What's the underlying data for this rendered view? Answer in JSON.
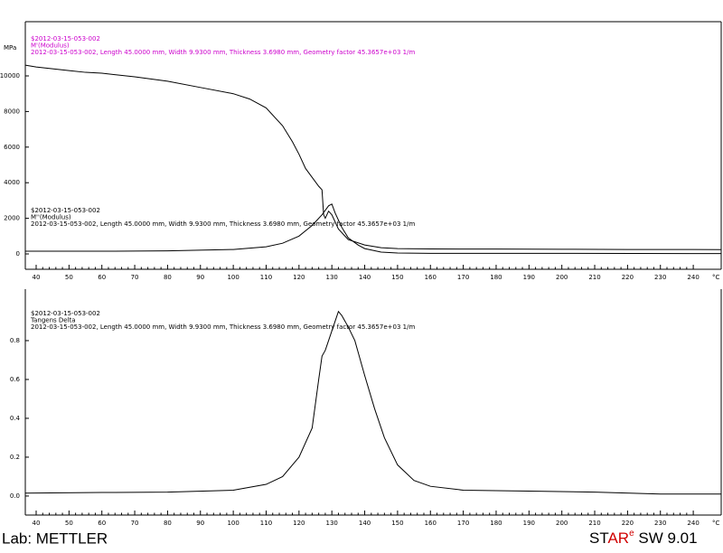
{
  "chart_data": [
    {
      "type": "line",
      "y_unit": "MPa",
      "x_unit": "°C",
      "xlim": [
        36.7,
        248.5
      ],
      "ylim": [
        -863,
        13046
      ],
      "xticks": [
        40,
        50,
        60,
        70,
        80,
        90,
        100,
        110,
        120,
        130,
        140,
        150,
        160,
        170,
        180,
        190,
        200,
        210,
        220,
        230,
        240
      ],
      "yticks": [
        0,
        2000,
        4000,
        6000,
        8000,
        10000
      ],
      "annotations": [
        {
          "color": "#cc00cc",
          "lines": [
            "$2012-03-15-053-002",
            "M'(Modulus)",
            "2012-03-15-053-002, Length 45.0000 mm, Width 9.9300 mm, Thickness 3.6980 mm, Geometry factor 45.3657e+03 1/m"
          ]
        },
        {
          "color": "#000000",
          "lines": [
            "$2012-03-15-053-002",
            "M''(Modulus)",
            "2012-03-15-053-002, Length 45.0000 mm, Width 9.9300 mm, Thickness 3.6980 mm, Geometry factor 45.3657e+03 1/m"
          ]
        }
      ],
      "series": [
        {
          "color": "#000000",
          "x": [
            36.7,
            40,
            50,
            55,
            60,
            70,
            80,
            90,
            100,
            105,
            110,
            115,
            118,
            120,
            122,
            124,
            126,
            127,
            127.5,
            128,
            129,
            130,
            132,
            135,
            140,
            145,
            150,
            160,
            180,
            200,
            220,
            240,
            248.5
          ],
          "values": [
            10600,
            10500,
            10300,
            10200,
            10150,
            9950,
            9700,
            9350,
            9000,
            8700,
            8200,
            7200,
            6300,
            5600,
            4800,
            4300,
            3800,
            3600,
            2200,
            2000,
            2400,
            2200,
            1400,
            800,
            500,
            350,
            300,
            280,
            270,
            260,
            250,
            250,
            240
          ]
        },
        {
          "color": "#000000",
          "x": [
            36.7,
            60,
            80,
            100,
            110,
            115,
            120,
            124,
            127,
            129,
            130,
            131,
            133,
            135,
            138,
            140,
            145,
            150,
            160,
            200,
            248.5
          ],
          "values": [
            150,
            150,
            170,
            250,
            400,
            600,
            1000,
            1600,
            2200,
            2700,
            2800,
            2300,
            1500,
            900,
            500,
            300,
            100,
            50,
            30,
            30,
            20
          ]
        }
      ]
    },
    {
      "type": "line",
      "x_unit": "°C",
      "xlim": [
        36.7,
        248.5
      ],
      "ylim": [
        -0.098,
        1.065
      ],
      "xticks": [
        40,
        50,
        60,
        70,
        80,
        90,
        100,
        110,
        120,
        130,
        140,
        150,
        160,
        170,
        180,
        190,
        200,
        210,
        220,
        230,
        240
      ],
      "yticks": [
        {
          "value": 0,
          "label": "0.0"
        },
        0.2,
        0.4,
        0.6,
        0.8
      ],
      "annotations": [
        {
          "color": "#000000",
          "lines": [
            "$2012-03-15-053-002",
            "Tangens Delta",
            "2012-03-15-053-002, Length 45.0000 mm, Width 9.9300 mm, Thickness 3.6980 mm, Geometry factor 45.3657e+03 1/m"
          ]
        }
      ],
      "series": [
        {
          "color": "#000000",
          "x": [
            36.7,
            60,
            80,
            100,
            110,
            115,
            120,
            124,
            126,
            127,
            128,
            130,
            131,
            132,
            133,
            135,
            137,
            140,
            143,
            146,
            150,
            155,
            160,
            170,
            190,
            210,
            230,
            248.5
          ],
          "values": [
            0.015,
            0.018,
            0.02,
            0.03,
            0.06,
            0.1,
            0.2,
            0.35,
            0.6,
            0.72,
            0.75,
            0.85,
            0.9,
            0.95,
            0.93,
            0.87,
            0.8,
            0.62,
            0.45,
            0.3,
            0.16,
            0.08,
            0.05,
            0.03,
            0.025,
            0.02,
            0.01,
            0.01
          ]
        }
      ]
    }
  ],
  "footer": {
    "lab": "Lab: METTLER",
    "brand_black": "ST",
    "brand_red": "AR",
    "brand_sup": "e",
    "version": " SW 9.01"
  }
}
